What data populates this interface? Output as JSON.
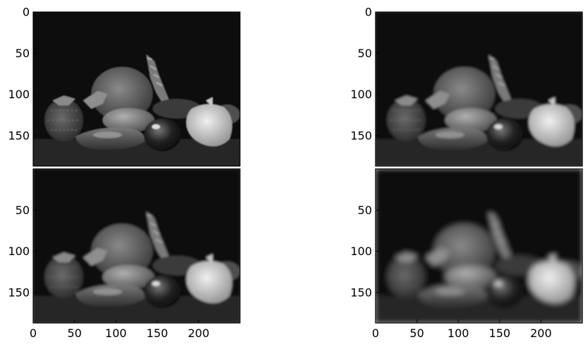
{
  "chart_data": [
    {
      "type": "image",
      "colormap": "gray",
      "xlim": [
        0,
        250
      ],
      "ylim": [
        187,
        0
      ],
      "xticks": [],
      "yticks": [
        0,
        50,
        100,
        150
      ]
    },
    {
      "type": "image",
      "colormap": "gray",
      "xlim": [
        0,
        250
      ],
      "ylim": [
        187,
        0
      ],
      "xticks": [],
      "yticks": [
        0,
        50,
        100,
        150
      ]
    },
    {
      "type": "image",
      "colormap": "gray",
      "xlim": [
        0,
        250
      ],
      "ylim": [
        187,
        0
      ],
      "xticks": [
        0,
        50,
        100,
        150,
        200
      ],
      "yticks": [
        50,
        100,
        150
      ]
    },
    {
      "type": "image",
      "colormap": "gray",
      "xlim": [
        0,
        250
      ],
      "ylim": [
        187,
        0
      ],
      "xticks": [
        0,
        50,
        100,
        150,
        200
      ],
      "yticks": [
        50,
        100,
        150
      ]
    }
  ]
}
